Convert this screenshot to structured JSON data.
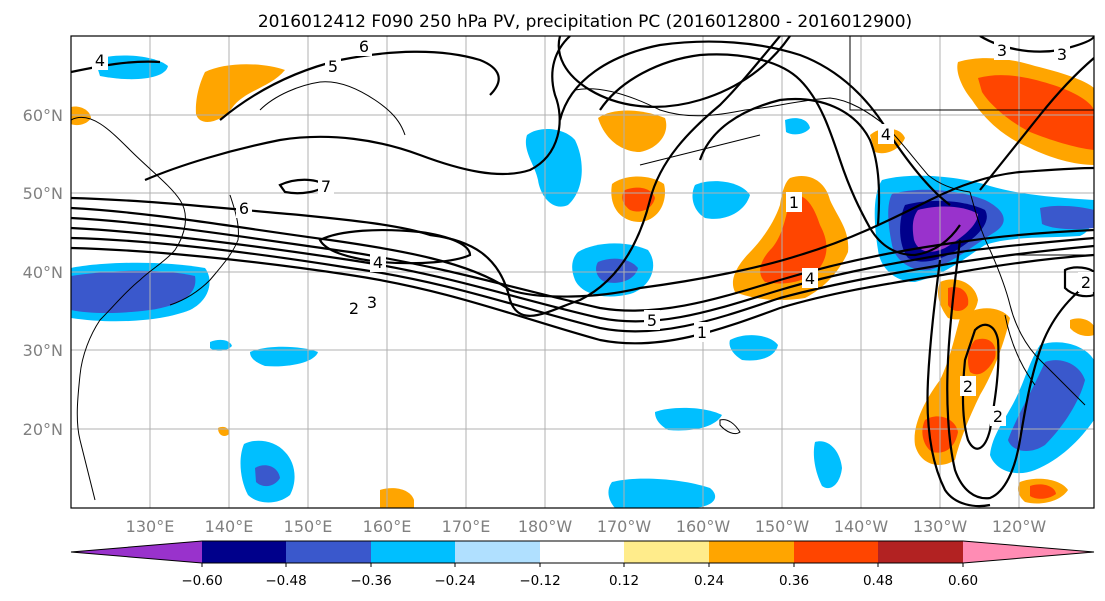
{
  "title": "2016012412 F090 250 hPa PV, precipitation PC (2016012800 - 2016012900)",
  "map": {
    "lat_labels": [
      "60°N",
      "50°N",
      "40°N",
      "30°N",
      "20°N"
    ],
    "lon_labels": [
      "130°E",
      "140°E",
      "150°E",
      "160°E",
      "170°E",
      "180°W",
      "170°W",
      "160°W",
      "150°W",
      "140°W",
      "130°W",
      "120°W"
    ],
    "pv_contour_labels": [
      "4",
      "6",
      "5",
      "7",
      "6",
      "4",
      "2",
      "3",
      "5",
      "1",
      "4",
      "1",
      "3",
      "2",
      "2",
      "2",
      "3",
      "4"
    ]
  },
  "colorbar": {
    "tick_labels": [
      "−0.60",
      "−0.48",
      "−0.36",
      "−0.24",
      "−0.12",
      "0.12",
      "0.24",
      "0.36",
      "0.48",
      "0.60"
    ],
    "colors": [
      "#9932cc",
      "#00008b",
      "#3a58cc",
      "#00bfff",
      "#b0e0ff",
      "#ffffff",
      "#ffec8b",
      "#ffa500",
      "#ff4500",
      "#b22222",
      "#ff8cb4"
    ]
  }
}
